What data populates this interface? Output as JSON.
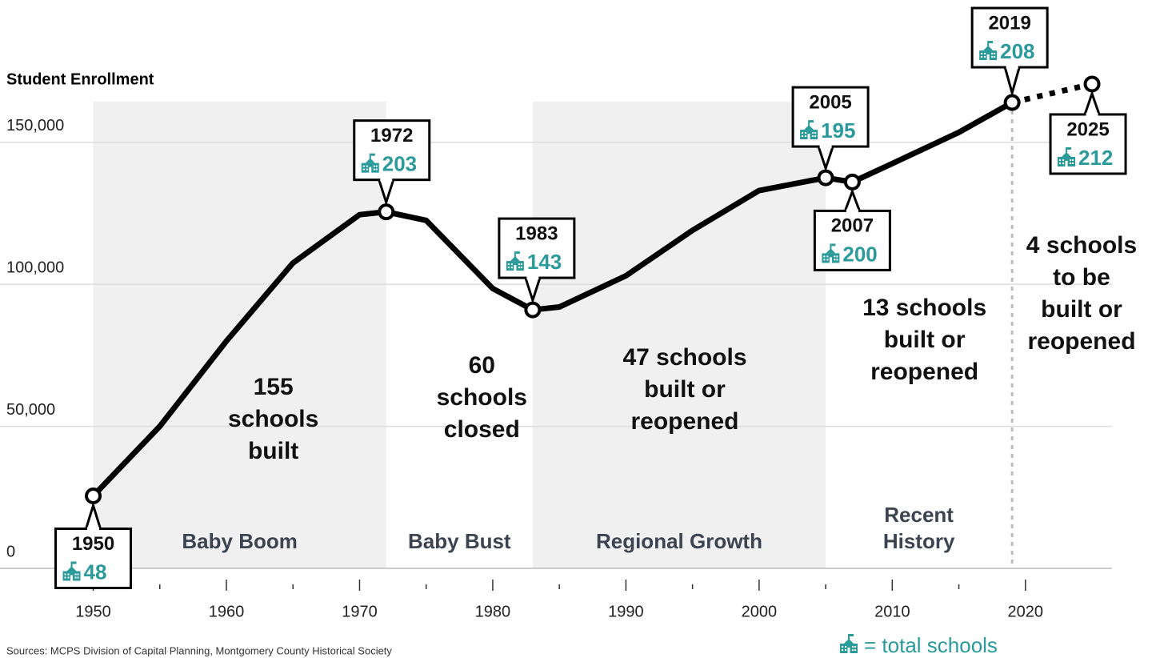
{
  "chart_data": {
    "type": "line",
    "y_label": "Student Enrollment",
    "source": "Sources: MCPS Division of Capital Planning, Montgomery County Historical Society",
    "legend_label": "= total schools",
    "schools_color": "#2a9a9b",
    "grid": true,
    "xlim": [
      1943,
      2026.5
    ],
    "ylim": [
      0,
      175000
    ],
    "xticks": [
      1950,
      1960,
      1970,
      1980,
      1990,
      2000,
      2010,
      2020
    ],
    "xminorticks": [
      1955,
      1965,
      1975,
      1985,
      1995,
      2005,
      2015
    ],
    "yticks": [
      0,
      {
        "value": 50000,
        "label": "50,000"
      },
      {
        "value": 100000,
        "label": "100,000"
      },
      {
        "value": 150000,
        "label": "150,000"
      }
    ],
    "series": [
      {
        "color": "#000000",
        "style": "solid",
        "x": [
          1950,
          1955,
          1960,
          1965,
          1970,
          1972,
          1975,
          1980,
          1983,
          1985,
          1990,
          1995,
          2000,
          2005,
          2007,
          2010,
          2015,
          2019
        ],
        "values": [
          25500,
          50000,
          80000,
          107500,
          124500,
          125500,
          122500,
          98500,
          91000,
          92000,
          103000,
          119000,
          133000,
          137500,
          136000,
          142500,
          153500,
          164000
        ]
      },
      {
        "color": "#000000",
        "style": "dashed",
        "x": [
          2019,
          2025
        ],
        "values": [
          164000,
          170500
        ]
      }
    ],
    "callouts": [
      {
        "year": 1950,
        "schools": 48
      },
      {
        "year": 1972,
        "schools": 203
      },
      {
        "year": 1983,
        "schools": 143
      },
      {
        "year": 2005,
        "schools": 195
      },
      {
        "year": 2007,
        "schools": 200
      },
      {
        "year": 2019,
        "schools": 208
      },
      {
        "year": 2025,
        "schools": 212
      }
    ],
    "eras": [
      {
        "name_lines": [
          "Baby Boom"
        ],
        "start": 1950,
        "end": 1972,
        "shaded": true,
        "note_lines": [
          "155",
          "schools",
          "built"
        ]
      },
      {
        "name_lines": [
          "Baby Bust"
        ],
        "start": 1972,
        "end": 1983,
        "shaded": false,
        "note_lines": [
          "60",
          "schools",
          "closed"
        ]
      },
      {
        "name_lines": [
          "Regional Growth"
        ],
        "start": 1983,
        "end": 2005,
        "shaded": true,
        "note_lines": [
          "47 schools",
          "built or",
          "reopened"
        ]
      },
      {
        "name_lines": [
          "Recent",
          "History"
        ],
        "start": 2005,
        "end": 2019,
        "shaded": false,
        "note_lines": [
          "13 schools",
          "built or",
          "reopened"
        ]
      }
    ],
    "projection_note_lines": [
      "4 schools",
      "to be",
      "built or",
      "reopened"
    ]
  }
}
